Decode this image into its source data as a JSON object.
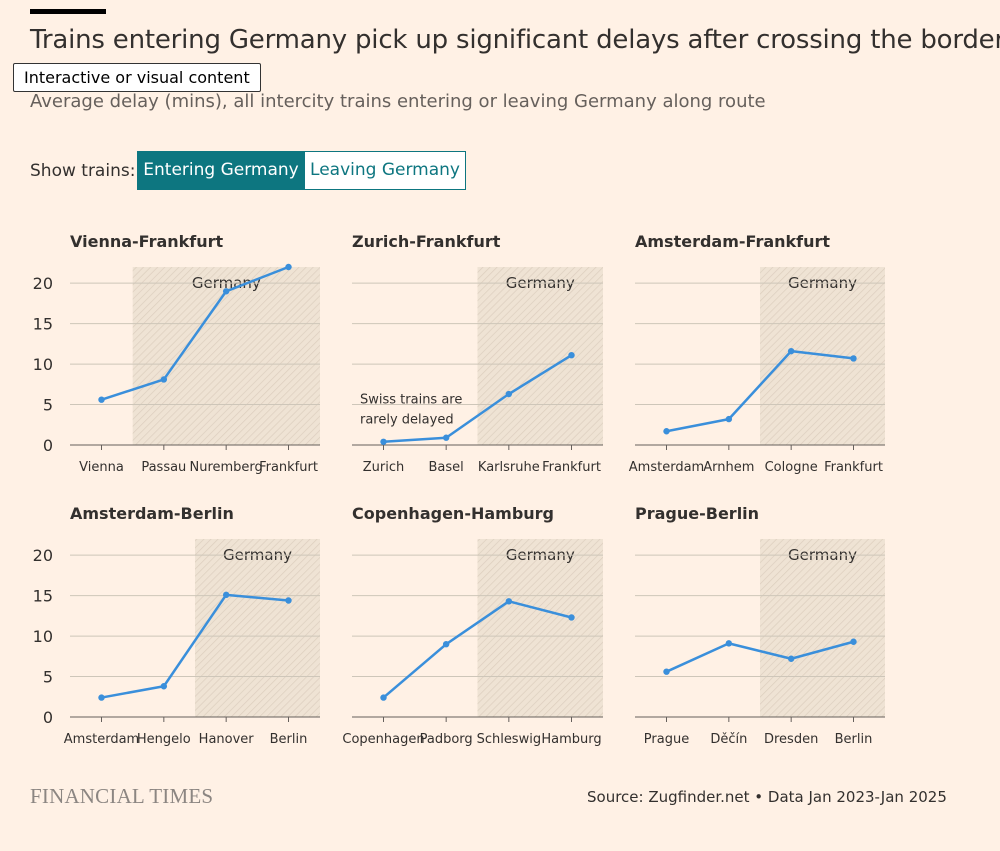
{
  "header": {
    "title": "Trains entering Germany pick up significant delays after crossing the border",
    "subtitle": "Average delay (mins), all intercity trains entering or leaving Germany along route",
    "tooltip": "Interactive or visual content"
  },
  "toggle": {
    "label": "Show trains:",
    "options": [
      "Entering Germany",
      "Leaving Germany"
    ],
    "selected": "Entering Germany"
  },
  "footer": {
    "logo": "FINANCIAL TIMES",
    "source": "Source: Zugfinder.net • Data Jan 2023-Jan 2025"
  },
  "colors": {
    "background": "#FFF1E5",
    "line": "#3A8FDB",
    "accent": "#0D7680",
    "grid": "#CEC6B9",
    "germany_region": "#EFE3D4"
  },
  "chart_data": [
    {
      "type": "line",
      "title": "Vienna-Frankfurt",
      "categories": [
        "Vienna",
        "Passau",
        "Nuremberg",
        "Frankfurt"
      ],
      "values": [
        5.6,
        8.1,
        19.0,
        22.0
      ],
      "germany_from_index": 1,
      "region_label": "Germany",
      "ylim": [
        0,
        22
      ],
      "yticks": [
        0,
        5,
        10,
        15,
        20
      ],
      "show_yticks": true
    },
    {
      "type": "line",
      "title": "Zurich-Frankfurt",
      "categories": [
        "Zurich",
        "Basel",
        "Karlsruhe",
        "Frankfurt"
      ],
      "values": [
        0.4,
        0.9,
        6.3,
        11.1
      ],
      "germany_from_index": 2,
      "region_label": "Germany",
      "annotation": [
        "Swiss trains are",
        "rarely delayed"
      ],
      "ylim": [
        0,
        22
      ],
      "yticks": [
        0,
        5,
        10,
        15,
        20
      ],
      "show_yticks": false
    },
    {
      "type": "line",
      "title": "Amsterdam-Frankfurt",
      "categories": [
        "Amsterdam",
        "Arnhem",
        "Cologne",
        "Frankfurt"
      ],
      "values": [
        1.7,
        3.2,
        11.6,
        10.7
      ],
      "germany_from_index": 2,
      "region_label": "Germany",
      "ylim": [
        0,
        22
      ],
      "yticks": [
        0,
        5,
        10,
        15,
        20
      ],
      "show_yticks": false
    },
    {
      "type": "line",
      "title": "Amsterdam-Berlin",
      "categories": [
        "Amsterdam",
        "Hengelo",
        "Hanover",
        "Berlin"
      ],
      "values": [
        2.4,
        3.8,
        15.1,
        14.4
      ],
      "germany_from_index": 2,
      "region_label": "Germany",
      "ylim": [
        0,
        22
      ],
      "yticks": [
        0,
        5,
        10,
        15,
        20
      ],
      "show_yticks": true
    },
    {
      "type": "line",
      "title": "Copenhagen-Hamburg",
      "categories": [
        "Copenhagen",
        "Padborg",
        "Schleswig",
        "Hamburg"
      ],
      "values": [
        2.4,
        9.0,
        14.3,
        12.3
      ],
      "germany_from_index": 2,
      "region_label": "Germany",
      "ylim": [
        0,
        22
      ],
      "yticks": [
        0,
        5,
        10,
        15,
        20
      ],
      "show_yticks": false
    },
    {
      "type": "line",
      "title": "Prague-Berlin",
      "categories": [
        "Prague",
        "Děčín",
        "Dresden",
        "Berlin"
      ],
      "values": [
        5.6,
        9.1,
        7.2,
        9.3
      ],
      "germany_from_index": 2,
      "region_label": "Germany",
      "ylim": [
        0,
        22
      ],
      "yticks": [
        0,
        5,
        10,
        15,
        20
      ],
      "show_yticks": false
    }
  ]
}
